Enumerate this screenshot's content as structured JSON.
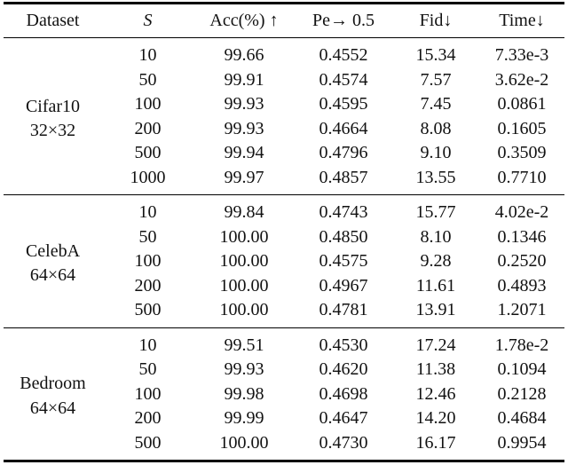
{
  "colors": {
    "background": "#ffffff",
    "text": "#111111",
    "rule": "#000000"
  },
  "table": {
    "columns": [
      {
        "key": "dataset",
        "label": "Dataset",
        "italic": false
      },
      {
        "key": "s",
        "label": "S",
        "italic": true
      },
      {
        "key": "acc",
        "label": "Acc(%) ↑",
        "italic": false
      },
      {
        "key": "pe",
        "label": "Pe→ 0.5",
        "italic": false
      },
      {
        "key": "fid",
        "label": "Fid↓",
        "italic": false
      },
      {
        "key": "time",
        "label": "Time↓",
        "italic": false
      }
    ],
    "groups": [
      {
        "id": "cifar10",
        "dataset_name": "Cifar10",
        "dataset_resolution": "32×32",
        "rows": [
          {
            "s": "10",
            "acc": "99.66",
            "pe": "0.4552",
            "fid": "15.34",
            "time": "7.33e-3"
          },
          {
            "s": "50",
            "acc": "99.91",
            "pe": "0.4574",
            "fid": "7.57",
            "time": "3.62e-2"
          },
          {
            "s": "100",
            "acc": "99.93",
            "pe": "0.4595",
            "fid": "7.45",
            "time": "0.0861"
          },
          {
            "s": "200",
            "acc": "99.93",
            "pe": "0.4664",
            "fid": "8.08",
            "time": "0.1605"
          },
          {
            "s": "500",
            "acc": "99.94",
            "pe": "0.4796",
            "fid": "9.10",
            "time": "0.3509"
          },
          {
            "s": "1000",
            "acc": "99.97",
            "pe": "0.4857",
            "fid": "13.55",
            "time": "0.7710"
          }
        ]
      },
      {
        "id": "celeba",
        "dataset_name": "CelebA",
        "dataset_resolution": "64×64",
        "rows": [
          {
            "s": "10",
            "acc": "99.84",
            "pe": "0.4743",
            "fid": "15.77",
            "time": "4.02e-2"
          },
          {
            "s": "50",
            "acc": "100.00",
            "pe": "0.4850",
            "fid": "8.10",
            "time": "0.1346"
          },
          {
            "s": "100",
            "acc": "100.00",
            "pe": "0.4575",
            "fid": "9.28",
            "time": "0.2520"
          },
          {
            "s": "200",
            "acc": "100.00",
            "pe": "0.4967",
            "fid": "11.61",
            "time": "0.4893"
          },
          {
            "s": "500",
            "acc": "100.00",
            "pe": "0.4781",
            "fid": "13.91",
            "time": "1.2071"
          }
        ]
      },
      {
        "id": "bedroom",
        "dataset_name": "Bedroom",
        "dataset_resolution": "64×64",
        "rows": [
          {
            "s": "10",
            "acc": "99.51",
            "pe": "0.4530",
            "fid": "17.24",
            "time": "1.78e-2"
          },
          {
            "s": "50",
            "acc": "99.93",
            "pe": "0.4620",
            "fid": "11.38",
            "time": "0.1094"
          },
          {
            "s": "100",
            "acc": "99.98",
            "pe": "0.4698",
            "fid": "12.46",
            "time": "0.2128"
          },
          {
            "s": "200",
            "acc": "99.99",
            "pe": "0.4647",
            "fid": "14.20",
            "time": "0.4684"
          },
          {
            "s": "500",
            "acc": "100.00",
            "pe": "0.4730",
            "fid": "16.17",
            "time": "0.9954"
          }
        ]
      }
    ]
  }
}
